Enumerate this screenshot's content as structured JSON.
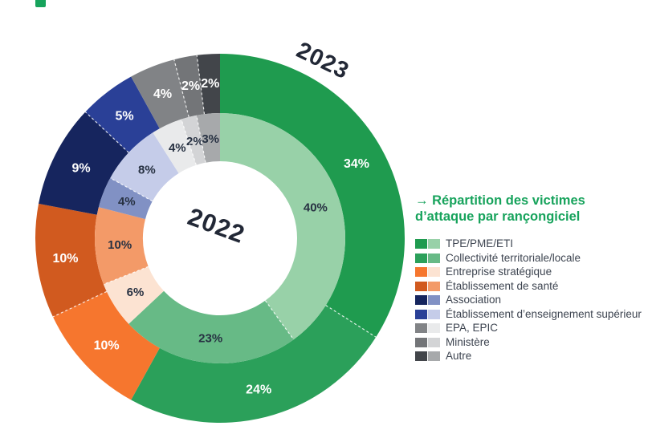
{
  "page": {
    "background": "#ffffff",
    "corner_mark_color": "#17a35c"
  },
  "chart_data": {
    "type": "donut",
    "layout": "nested-double-ring",
    "title": "→ Répartition des victimes d’attaque par rançongiciel",
    "title_lines": [
      "→ Répartition des victimes",
      "d’attaque par rançongiciel"
    ],
    "title_color": "#17a35c",
    "unit": "%",
    "legend_position": "right",
    "legend_text_color": "#3d4450",
    "categories": [
      "TPE/PME/ETI",
      "Collectivité territoriale/locale",
      "Entreprise stratégique",
      "Établissement de santé",
      "Association",
      "Établissement d’enseignement supérieur",
      "EPA, EPIC",
      "Ministère",
      "Autre"
    ],
    "series": [
      {
        "name": "2023",
        "ring": "outer",
        "values": [
          34,
          24,
          10,
          10,
          9,
          5,
          4,
          2,
          2
        ],
        "colors": [
          "#1f9b4f",
          "#2ba05a",
          "#f6762e",
          "#d15a1f",
          "#16255e",
          "#2a4097",
          "#818386",
          "#737578",
          "#42454a"
        ],
        "label_color": "#ffffff"
      },
      {
        "name": "2022",
        "ring": "inner",
        "values": [
          40,
          23,
          6,
          10,
          4,
          8,
          4,
          2,
          3
        ],
        "colors": [
          "#98d1a8",
          "#67ba86",
          "#fce3d2",
          "#f39a68",
          "#8191c4",
          "#c5cce9",
          "#e9eaeb",
          "#d3d4d6",
          "#a7a9ab"
        ],
        "label_color": "#273142"
      }
    ],
    "year_label_color": "#222836",
    "start_angle_deg": 0,
    "direction": "clockwise"
  }
}
